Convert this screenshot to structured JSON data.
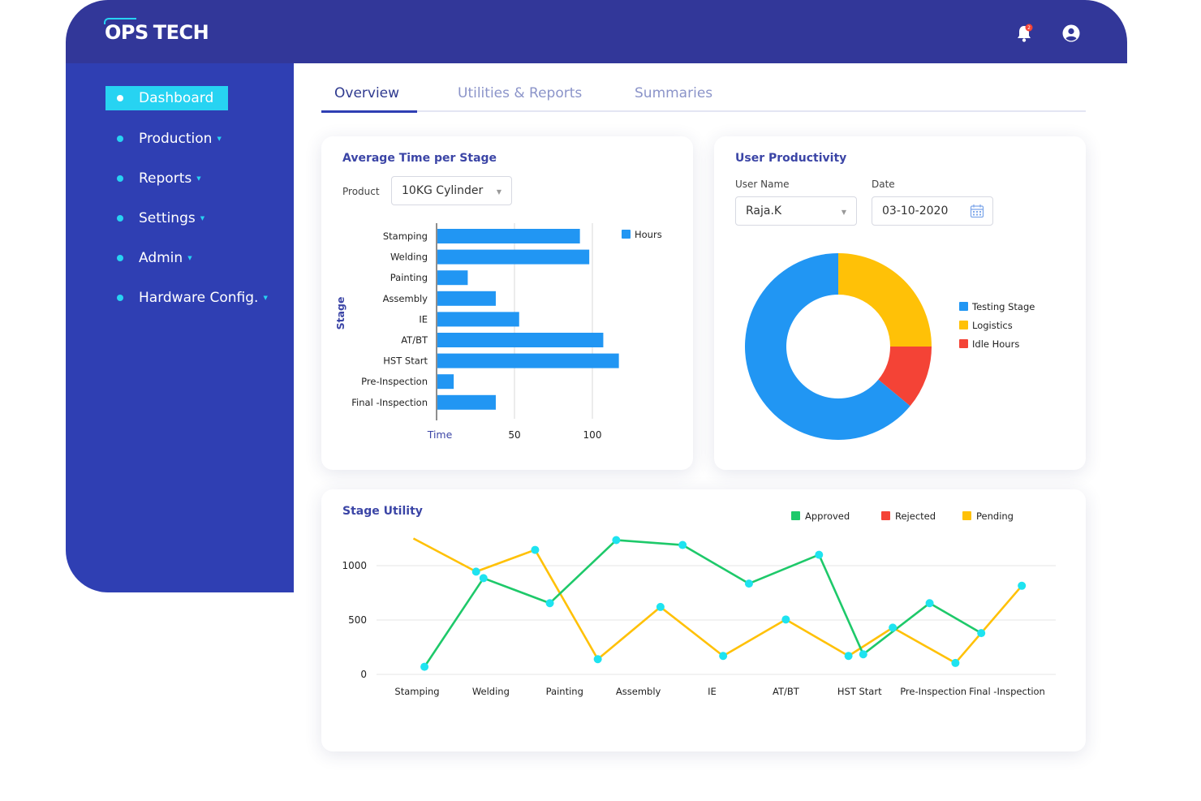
{
  "brand": {
    "logo_part1": "OPS",
    "logo_part2": "TECH"
  },
  "header": {
    "notification_count": "2",
    "colors": {
      "header_bg": "#323799",
      "sidebar_bg": "#2f3fb3",
      "accent": "#27d3f2"
    }
  },
  "sidebar": {
    "items": [
      {
        "label": "Dashboard",
        "active": true
      },
      {
        "label": "Production"
      },
      {
        "label": "Reports"
      },
      {
        "label": "Settings"
      },
      {
        "label": "Admin"
      },
      {
        "label": "Hardware Config."
      }
    ]
  },
  "tabs": [
    {
      "label": "Overview",
      "active": true
    },
    {
      "label": "Utilities & Reports"
    },
    {
      "label": "Summaries"
    }
  ],
  "avg_time_card": {
    "title": "Average Time per Stage",
    "product_label": "Product",
    "product_value": "10KG Cylinder"
  },
  "user_prod_card": {
    "title": "User Productivity",
    "user_label": "User Name",
    "user_value": "Raja.K",
    "date_label": "Date",
    "date_value": "03-10-2020"
  },
  "stage_utility_card": {
    "title": "Stage Utility"
  },
  "chart_data": [
    {
      "type": "bar",
      "orientation": "horizontal",
      "categories": [
        "Stamping",
        "Welding",
        "Painting",
        "Assembly",
        "IE",
        "AT/BT",
        "HST Start",
        "Pre-Inspection",
        "Final -Inspection"
      ],
      "series": [
        {
          "name": "Hours",
          "values": [
            92,
            98,
            20,
            38,
            53,
            107,
            117,
            11,
            38
          ],
          "color": "#2196f3"
        }
      ],
      "xlabel": "Time",
      "ylabel": "Stage",
      "xticks": [
        "50",
        "100"
      ],
      "xlim": [
        0,
        120
      ],
      "legend": "top-right",
      "grid": true
    },
    {
      "type": "pie",
      "donut": true,
      "labels": [
        "Testing Stage",
        "Logistics",
        "Idle Hours"
      ],
      "values": [
        64,
        25,
        11
      ],
      "colors": [
        "#2196f3",
        "#ffc107",
        "#f44336"
      ],
      "legend": "right"
    },
    {
      "type": "line",
      "categories": [
        "Stamping",
        "Welding",
        "Painting",
        "Assembly",
        "IE",
        "AT/BT",
        "HST Start",
        "Pre-Inspection",
        "Final -Inspection"
      ],
      "series": [
        {
          "name": "Approved",
          "color": "#1ec96a",
          "x": [
            0.1,
            0.9,
            1.8,
            2.7,
            3.6,
            4.5,
            5.45,
            6.05,
            6.95,
            7.65
          ],
          "values": [
            70,
            885,
            655,
            1235,
            1190,
            835,
            1100,
            185,
            655,
            380
          ]
        },
        {
          "name": "Rejected",
          "color": "#f44336",
          "x": [],
          "values": []
        },
        {
          "name": "Pending",
          "color": "#ffc107",
          "x": [
            -0.05,
            0.8,
            1.6,
            2.45,
            3.3,
            4.15,
            5.0,
            5.85,
            6.45,
            7.3,
            8.2
          ],
          "values": [
            1250,
            945,
            1145,
            140,
            620,
            170,
            505,
            170,
            430,
            105,
            815
          ]
        }
      ],
      "yticks": [
        "0",
        "500",
        "1000"
      ],
      "ylim": [
        0,
        1300
      ],
      "legend": "top-right",
      "grid": true
    }
  ]
}
